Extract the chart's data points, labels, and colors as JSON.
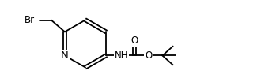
{
  "bg_color": "#ffffff",
  "line_color": "#000000",
  "lw": 1.3,
  "fs": 8.5,
  "figsize": [
    3.3,
    1.04
  ],
  "dpi": 100,
  "xlim": [
    0.0,
    13.0
  ],
  "ylim": [
    0.5,
    5.0
  ]
}
